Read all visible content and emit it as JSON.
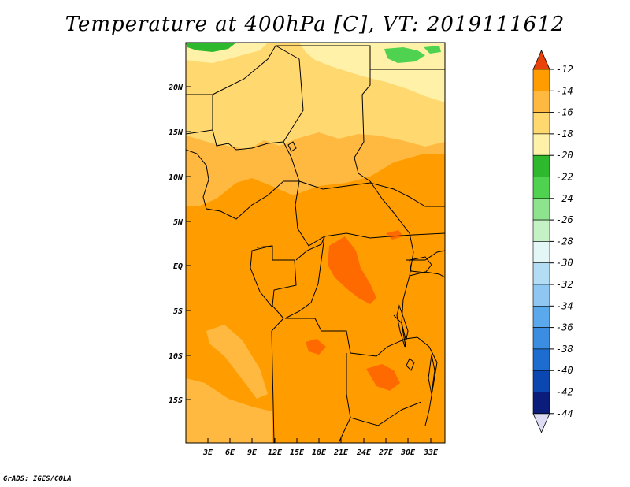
{
  "title": "Temperature at 400hPa [C], VT: 2019111612",
  "credit": "GrADS: IGES/COLA",
  "map": {
    "lat_ticks": [
      "20N",
      "15N",
      "10N",
      "5N",
      "EQ",
      "5S",
      "10S",
      "15S"
    ],
    "lon_ticks": [
      "3E",
      "6E",
      "9E",
      "12E",
      "15E",
      "18E",
      "21E",
      "24E",
      "27E",
      "30E",
      "33E"
    ],
    "lon_range": [
      0,
      35
    ],
    "lat_range": [
      -20,
      25
    ]
  },
  "colorbar": {
    "labels": [
      "-12",
      "-14",
      "-16",
      "-18",
      "-20",
      "-22",
      "-24",
      "-26",
      "-28",
      "-30",
      "-32",
      "-34",
      "-36",
      "-38",
      "-40",
      "-42",
      "-44"
    ],
    "colors": [
      "#ff6a00",
      "#ff9d00",
      "#ffb940",
      "#ffd870",
      "#fff2a8",
      "#2eb82e",
      "#4fd24f",
      "#8de48d",
      "#c5f2c5",
      "#e4f7f7",
      "#b3dcf5",
      "#8ec8f2",
      "#5aa9ec",
      "#3a8de0",
      "#1d6dd1",
      "#0a47b0",
      "#0c1c7a"
    ],
    "top_cap_color": "#e8410a",
    "bottom_cap_color": "#dcdcf5"
  }
}
